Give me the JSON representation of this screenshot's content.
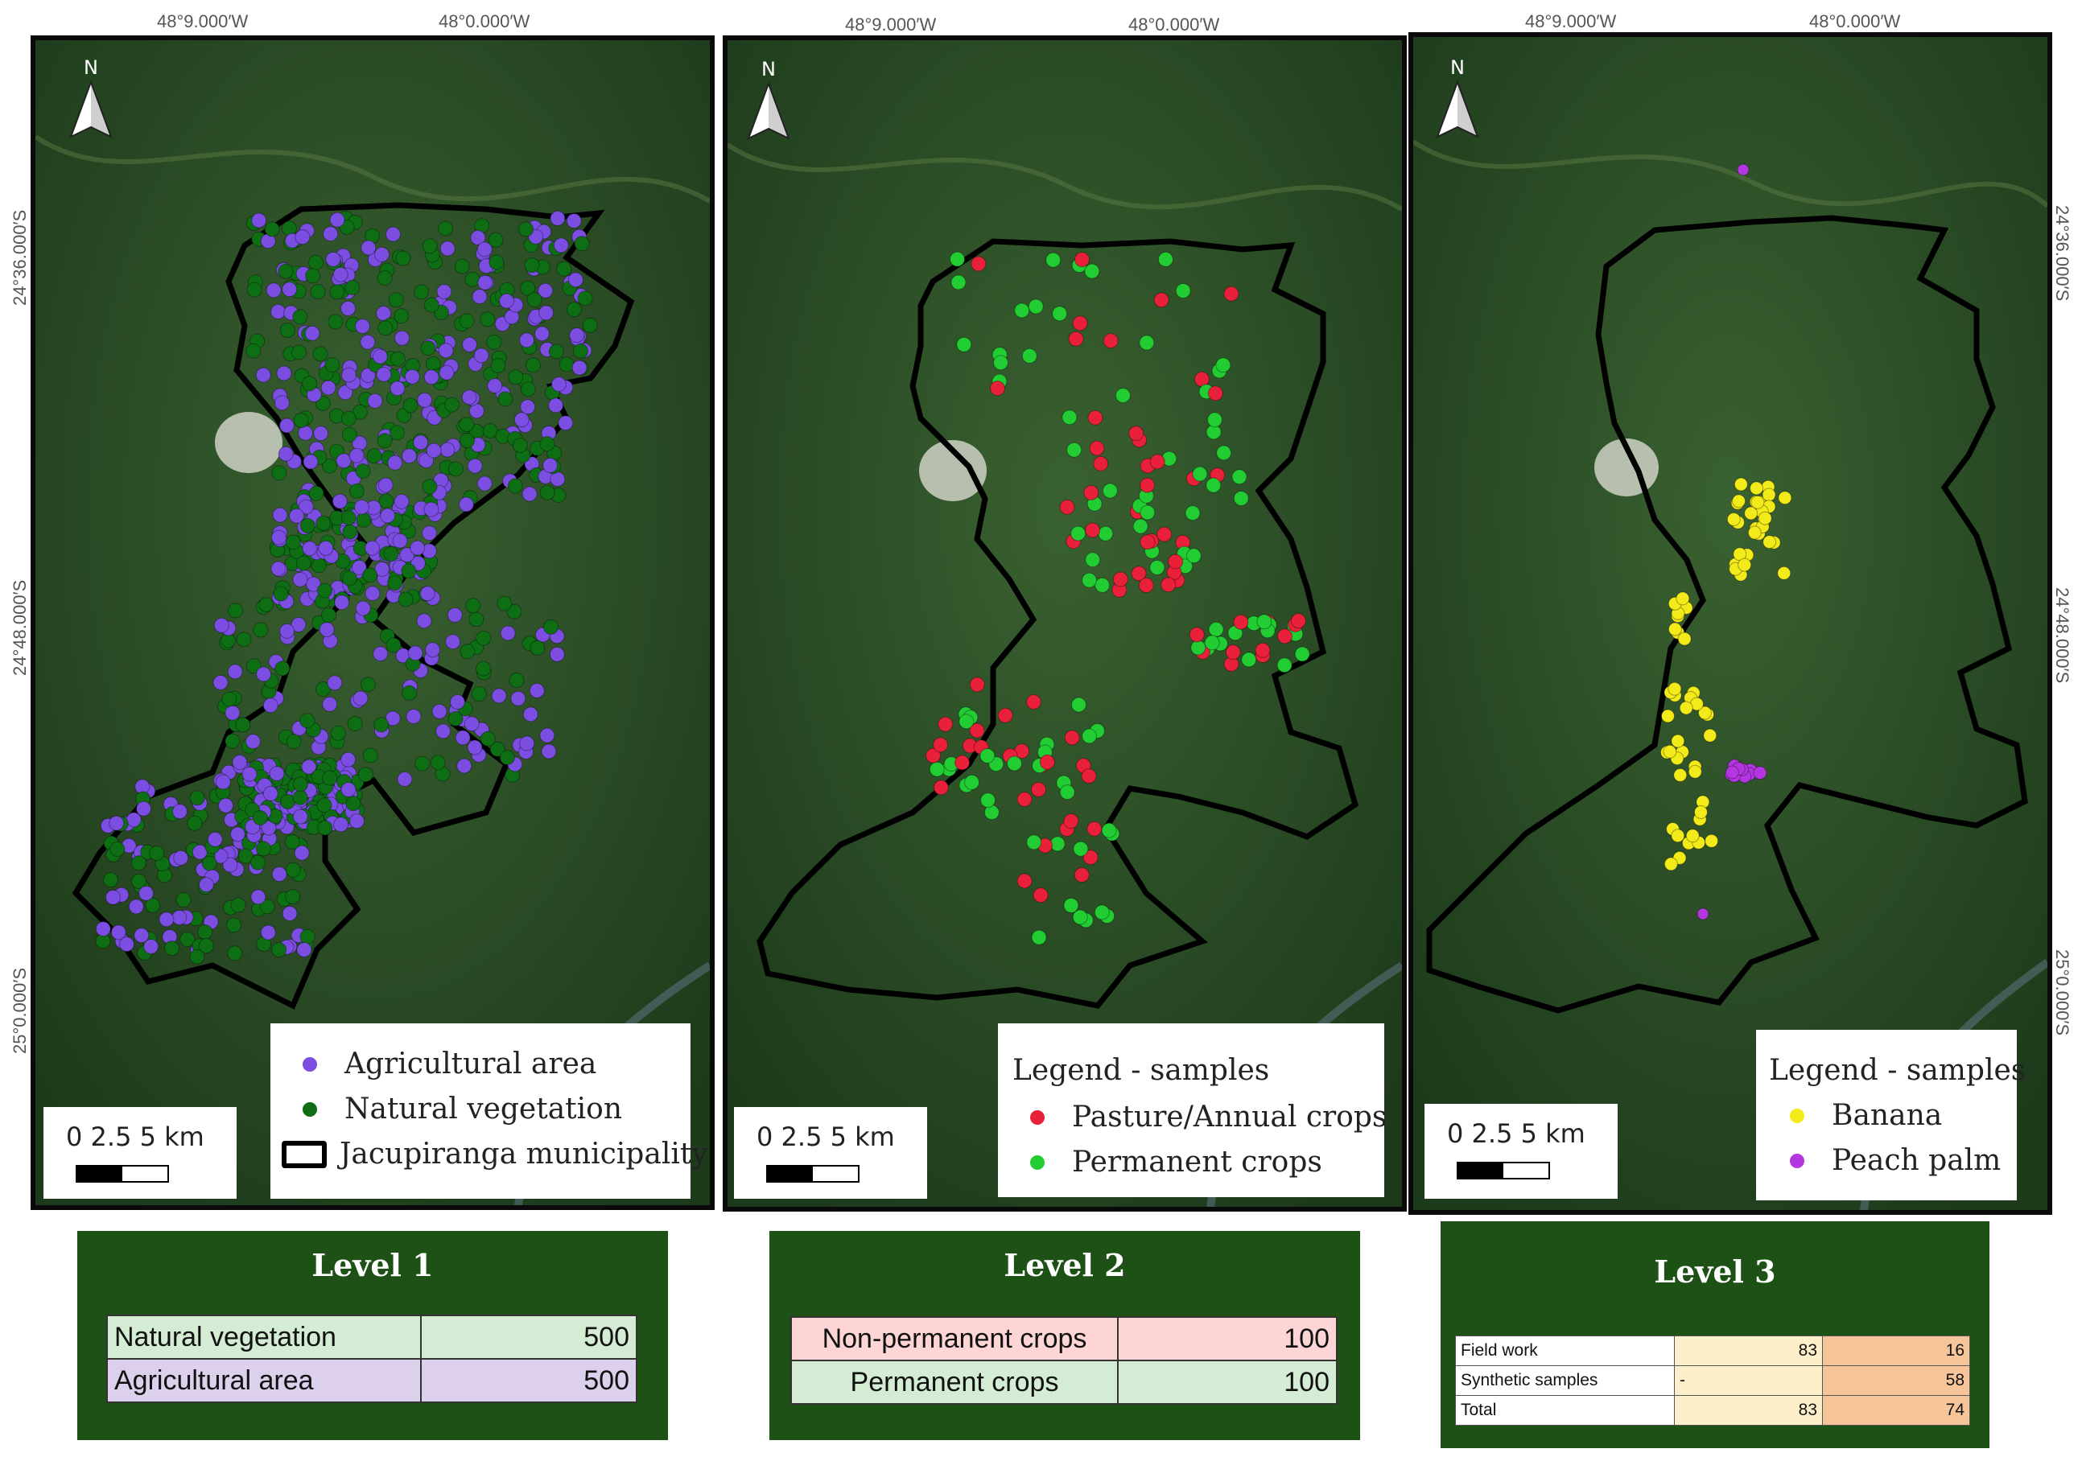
{
  "coordinates": {
    "lon_labels": [
      "48°9.000′W",
      "48°0.000′W"
    ],
    "lat_left": [
      "24°36.000′S",
      "24°48.000′S",
      "25°0.000′S"
    ],
    "lat_right": [
      "24°36.000′S",
      "24°48.000′S",
      "25°0.000′S"
    ]
  },
  "north_label": "N",
  "scale_bar": {
    "labels": "0  2.5   5 km"
  },
  "map1": {
    "legend": [
      {
        "label": "Agricultural area",
        "color": "#7b4de0"
      },
      {
        "label": "Natural vegetation",
        "color": "#0e6e14"
      },
      {
        "label": "Jacupiranga municipality",
        "color": "#000000"
      }
    ]
  },
  "map2": {
    "legend_title": "Legend - samples",
    "legend": [
      {
        "label": "Pasture/Annual crops",
        "color": "#e8203a"
      },
      {
        "label": "Permanent crops",
        "color": "#22cc33"
      }
    ]
  },
  "map3": {
    "legend_title": "Legend - samples",
    "legend": [
      {
        "label": "Banana",
        "color": "#f3ea1a"
      },
      {
        "label": "Peach palm",
        "color": "#b336e0"
      }
    ]
  },
  "level1": {
    "title": "Level 1",
    "rows": [
      {
        "label": "Natural vegetation",
        "value": "500",
        "color": "#d3ecd3"
      },
      {
        "label": "Agricultural area",
        "value": "500",
        "color": "#dcd0ec"
      }
    ]
  },
  "level2": {
    "title": "Level 2",
    "rows": [
      {
        "label": "Non-permanent crops",
        "value": "100",
        "color": "#fdd5d5"
      },
      {
        "label": "Permanent crops",
        "value": "100",
        "color": "#d3ecd3"
      }
    ]
  },
  "level3": {
    "title": "Level 3",
    "rows": [
      {
        "label": "Field work",
        "a": "83",
        "b": "16"
      },
      {
        "label": "Synthetic samples",
        "a": "-",
        "b": "58"
      },
      {
        "label": "Total",
        "a": "83",
        "b": "74"
      }
    ]
  }
}
